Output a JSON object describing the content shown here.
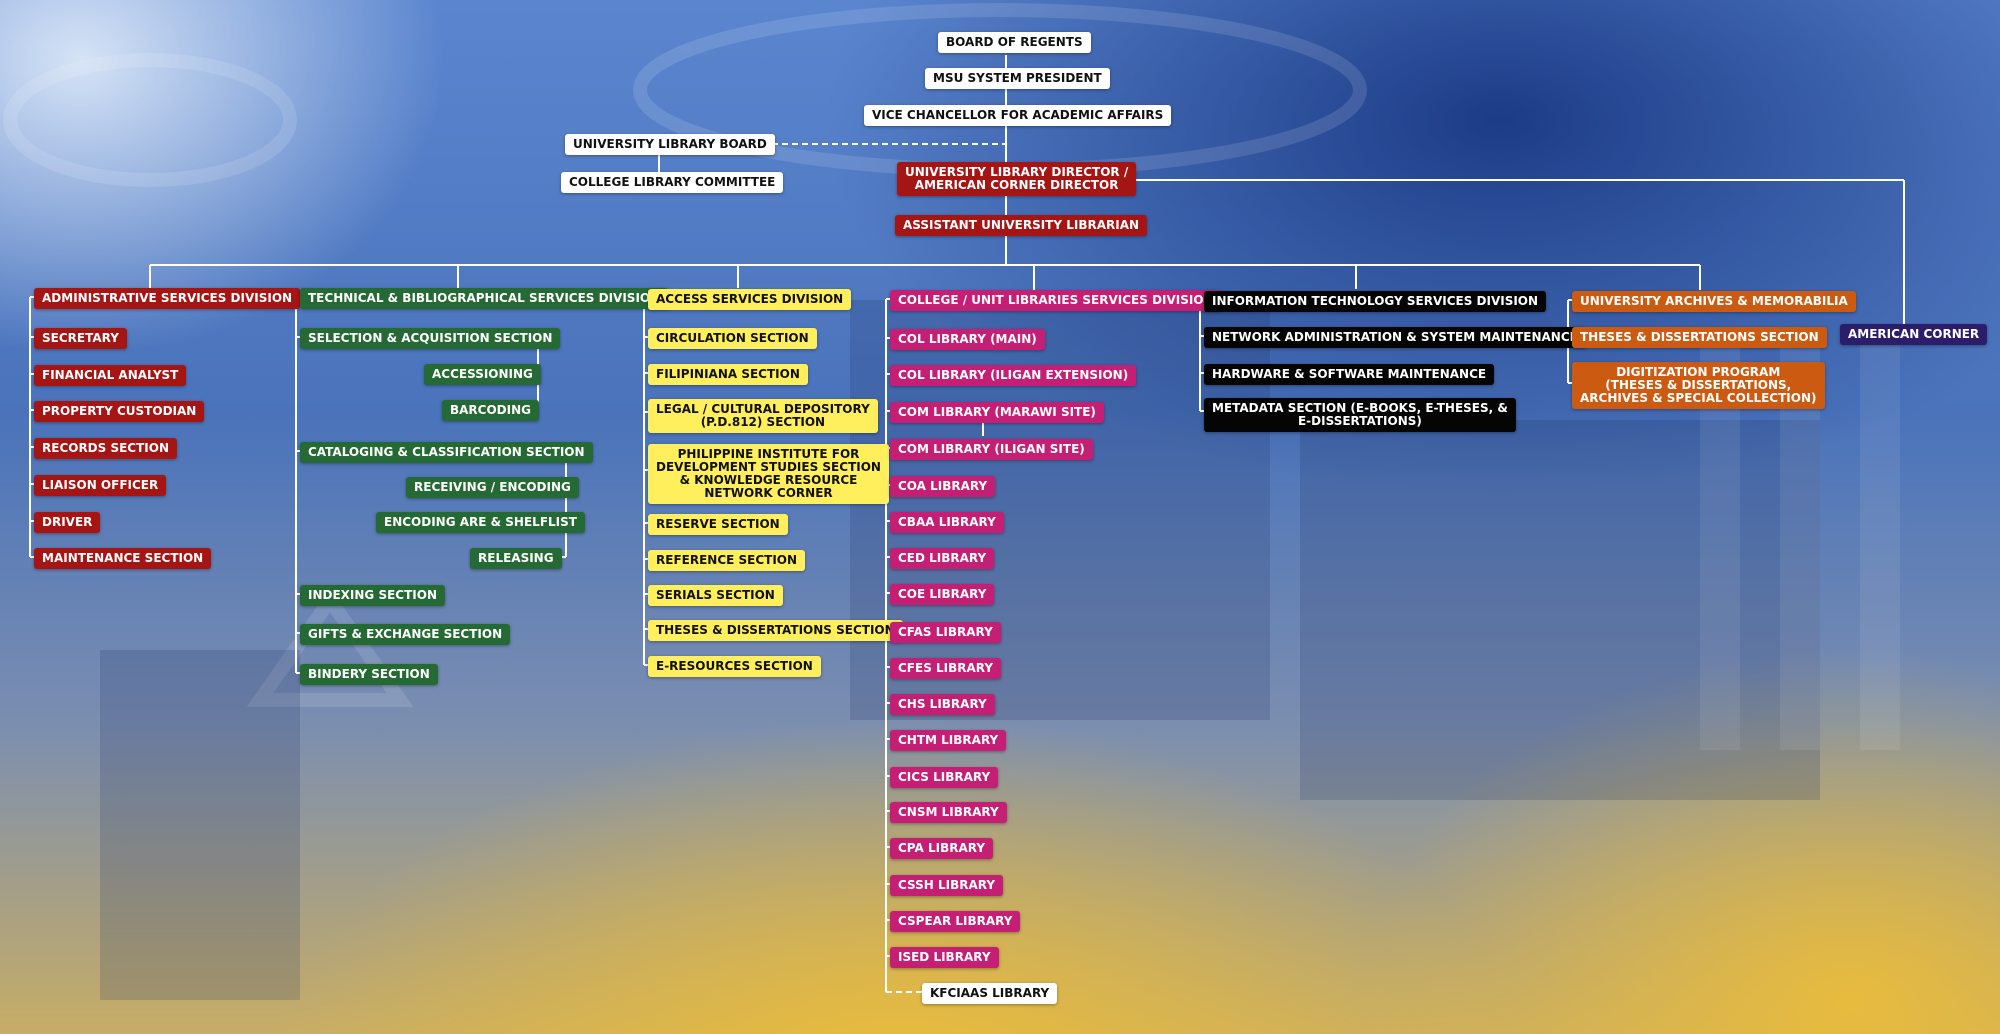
{
  "colors": {
    "top_level": "#ffffff",
    "library_leadership": "#a51514",
    "administrative": "#a51514",
    "technical": "#256a34",
    "access": "#ffef5c",
    "college_unit": "#c41f74",
    "information_technology": "#050505",
    "archives": "#cc5a10",
    "american_corner": "#2b1d6a",
    "connector": "#ffffff"
  },
  "top": {
    "board": "BOARD OF REGENTS",
    "president": "MSU SYSTEM PRESIDENT",
    "vc": "VICE CHANCELLOR FOR ACADEMIC AFFAIRS",
    "ulb": "UNIVERSITY LIBRARY BOARD",
    "clc": "COLLEGE LIBRARY COMMITTEE",
    "director": "UNIVERSITY LIBRARY DIRECTOR /\nAMERICAN CORNER DIRECTOR",
    "assistant": "ASSISTANT UNIVERSITY LIBRARIAN"
  },
  "admin": {
    "head": "ADMINISTRATIVE SERVICES DIVISION",
    "items": [
      "SECRETARY",
      "FINANCIAL ANALYST",
      "PROPERTY CUSTODIAN",
      "RECORDS SECTION",
      "LIAISON OFFICER",
      "DRIVER",
      "MAINTENANCE SECTION"
    ]
  },
  "technical": {
    "head": "TECHNICAL & BIBLIOGRAPHICAL SERVICES DIVISION",
    "selection": "SELECTION & ACQUISITION SECTION",
    "selection_items": [
      "ACCESSIONING",
      "BARCODING"
    ],
    "cataloging": "CATALOGING & CLASSIFICATION SECTION",
    "cataloging_items": [
      "RECEIVING / ENCODING",
      "ENCODING ARE & SHELFLIST",
      "RELEASING"
    ],
    "indexing": "INDEXING SECTION",
    "gifts": "GIFTS & EXCHANGE SECTION",
    "bindery": "BINDERY SECTION"
  },
  "access": {
    "head": "ACCESS SERVICES DIVISION",
    "items": [
      "CIRCULATION SECTION",
      "FILIPINIANA SECTION",
      "LEGAL / CULTURAL DEPOSITORY\n(P.D.812) SECTION",
      "PHILIPPINE INSTITUTE FOR\nDEVELOPMENT STUDIES SECTION\n& KNOWLEDGE RESOURCE\nNETWORK CORNER",
      "RESERVE SECTION",
      "REFERENCE SECTION",
      "SERIALS SECTION",
      "THESES & DISSERTATIONS SECTION",
      "E-RESOURCES SECTION"
    ]
  },
  "college": {
    "head": "COLLEGE / UNIT LIBRARIES SERVICES DIVISION",
    "items": [
      "COL LIBRARY (MAIN)",
      "COL LIBRARY (ILIGAN EXTENSION)",
      "COM LIBRARY (MARAWI SITE)",
      "COM LIBRARY (ILIGAN SITE)",
      "COA LIBRARY",
      "CBAA LIBRARY",
      "CED LIBRARY",
      "COE LIBRARY",
      "CFAS LIBRARY",
      "CFES LIBRARY",
      "CHS LIBRARY",
      "CHTM LIBRARY",
      "CICS LIBRARY",
      "CNSM LIBRARY",
      "CPA LIBRARY",
      "CSSH LIBRARY",
      "CSPEAR LIBRARY",
      "ISED LIBRARY"
    ],
    "kfciaas": "KFCIAAS LIBRARY"
  },
  "it": {
    "head": "INFORMATION TECHNOLOGY SERVICES DIVISION",
    "items": [
      "NETWORK ADMINISTRATION & SYSTEM MAINTENANCE",
      "HARDWARE & SOFTWARE MAINTENANCE",
      "METADATA SECTION (E-BOOKS, E-THESES, &\nE-DISSERTATIONS)"
    ]
  },
  "archives": {
    "head": "UNIVERSITY ARCHIVES & MEMORABILIA",
    "items": [
      "THESES & DISSERTATIONS SECTION",
      "DIGITIZATION PROGRAM\n(THESES & DISSERTATIONS,\nARCHIVES & SPECIAL COLLECTION)"
    ]
  },
  "american": "AMERICAN CORNER"
}
